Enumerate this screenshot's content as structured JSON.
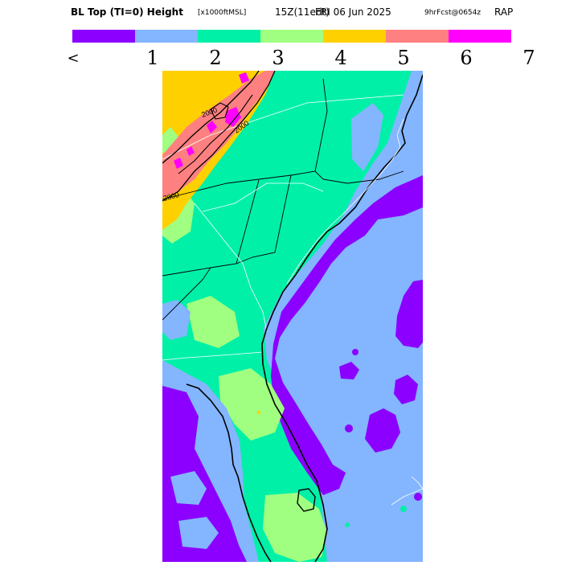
{
  "header": {
    "title": "BL Top (TI=0) Height",
    "units": "[x1000ftMSL]",
    "valid_time": "15Z(11edt)",
    "date": "FRI 06 Jun 2025",
    "forecast": "9hrFcst@0654z",
    "model": "RAP"
  },
  "legend": {
    "colors": [
      "#8b00ff",
      "#84b5ff",
      "#00f0a8",
      "#a0ff80",
      "#ffd000",
      "#ff8080",
      "#ff00ff"
    ],
    "ticks": [
      "<",
      "1",
      "2",
      "3",
      "4",
      "5",
      "6",
      "7"
    ]
  },
  "map": {
    "contour_labels": [
      "2000",
      "2000",
      "2000"
    ]
  }
}
